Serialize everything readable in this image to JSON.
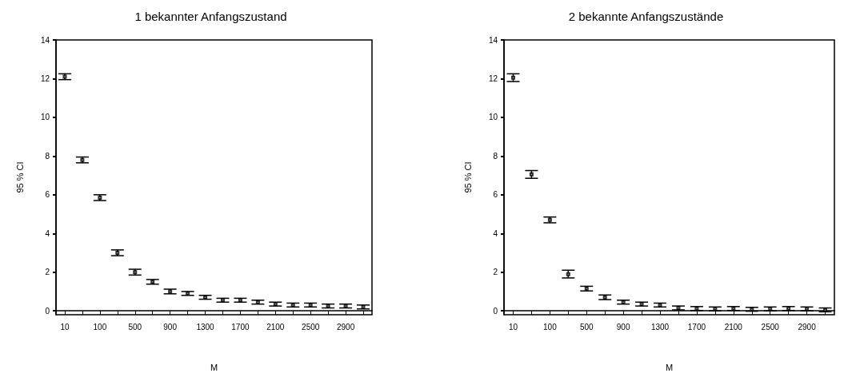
{
  "chart_data": [
    {
      "type": "scatter",
      "title": "1 bekannter Anfangszustand",
      "xlabel": "M",
      "ylabel": "95 % CI",
      "categories": [
        "10",
        null,
        "100",
        null,
        "500",
        null,
        "900",
        null,
        "1300",
        null,
        "1700",
        null,
        "2100",
        null,
        "2500",
        null,
        "2900",
        null
      ],
      "values": [
        12.1,
        7.8,
        5.85,
        3.0,
        2.0,
        1.5,
        1.0,
        0.9,
        0.7,
        0.55,
        0.55,
        0.45,
        0.35,
        0.3,
        0.3,
        0.25,
        0.25,
        0.2
      ],
      "errors": [
        0.15,
        0.15,
        0.15,
        0.15,
        0.15,
        0.12,
        0.12,
        0.1,
        0.1,
        0.1,
        0.1,
        0.1,
        0.1,
        0.1,
        0.1,
        0.1,
        0.1,
        0.1
      ],
      "color": "#000000",
      "marker": "square",
      "ylim": [
        -0.2,
        14
      ],
      "yticks": [
        0,
        2,
        4,
        6,
        8,
        10,
        12,
        14
      ]
    },
    {
      "type": "scatter",
      "title": "2 bekannte Anfangszustände",
      "xlabel": "M",
      "ylabel": "95 % CI",
      "categories": [
        "10",
        null,
        "100",
        null,
        "500",
        null,
        "900",
        null,
        "1300",
        null,
        "1700",
        null,
        "2100",
        null,
        "2500",
        null,
        "2900",
        null
      ],
      "values": [
        12.05,
        7.05,
        4.7,
        1.9,
        1.15,
        0.7,
        0.45,
        0.35,
        0.3,
        0.15,
        0.12,
        0.1,
        0.12,
        0.08,
        0.1,
        0.12,
        0.1,
        0.05
      ],
      "errors": [
        0.2,
        0.2,
        0.15,
        0.2,
        0.12,
        0.12,
        0.1,
        0.1,
        0.1,
        0.1,
        0.1,
        0.1,
        0.1,
        0.1,
        0.1,
        0.1,
        0.1,
        0.1
      ],
      "color": "#000000",
      "marker": "square",
      "ylim": [
        -0.2,
        14
      ],
      "yticks": [
        0,
        2,
        4,
        6,
        8,
        10,
        12,
        14
      ]
    }
  ]
}
